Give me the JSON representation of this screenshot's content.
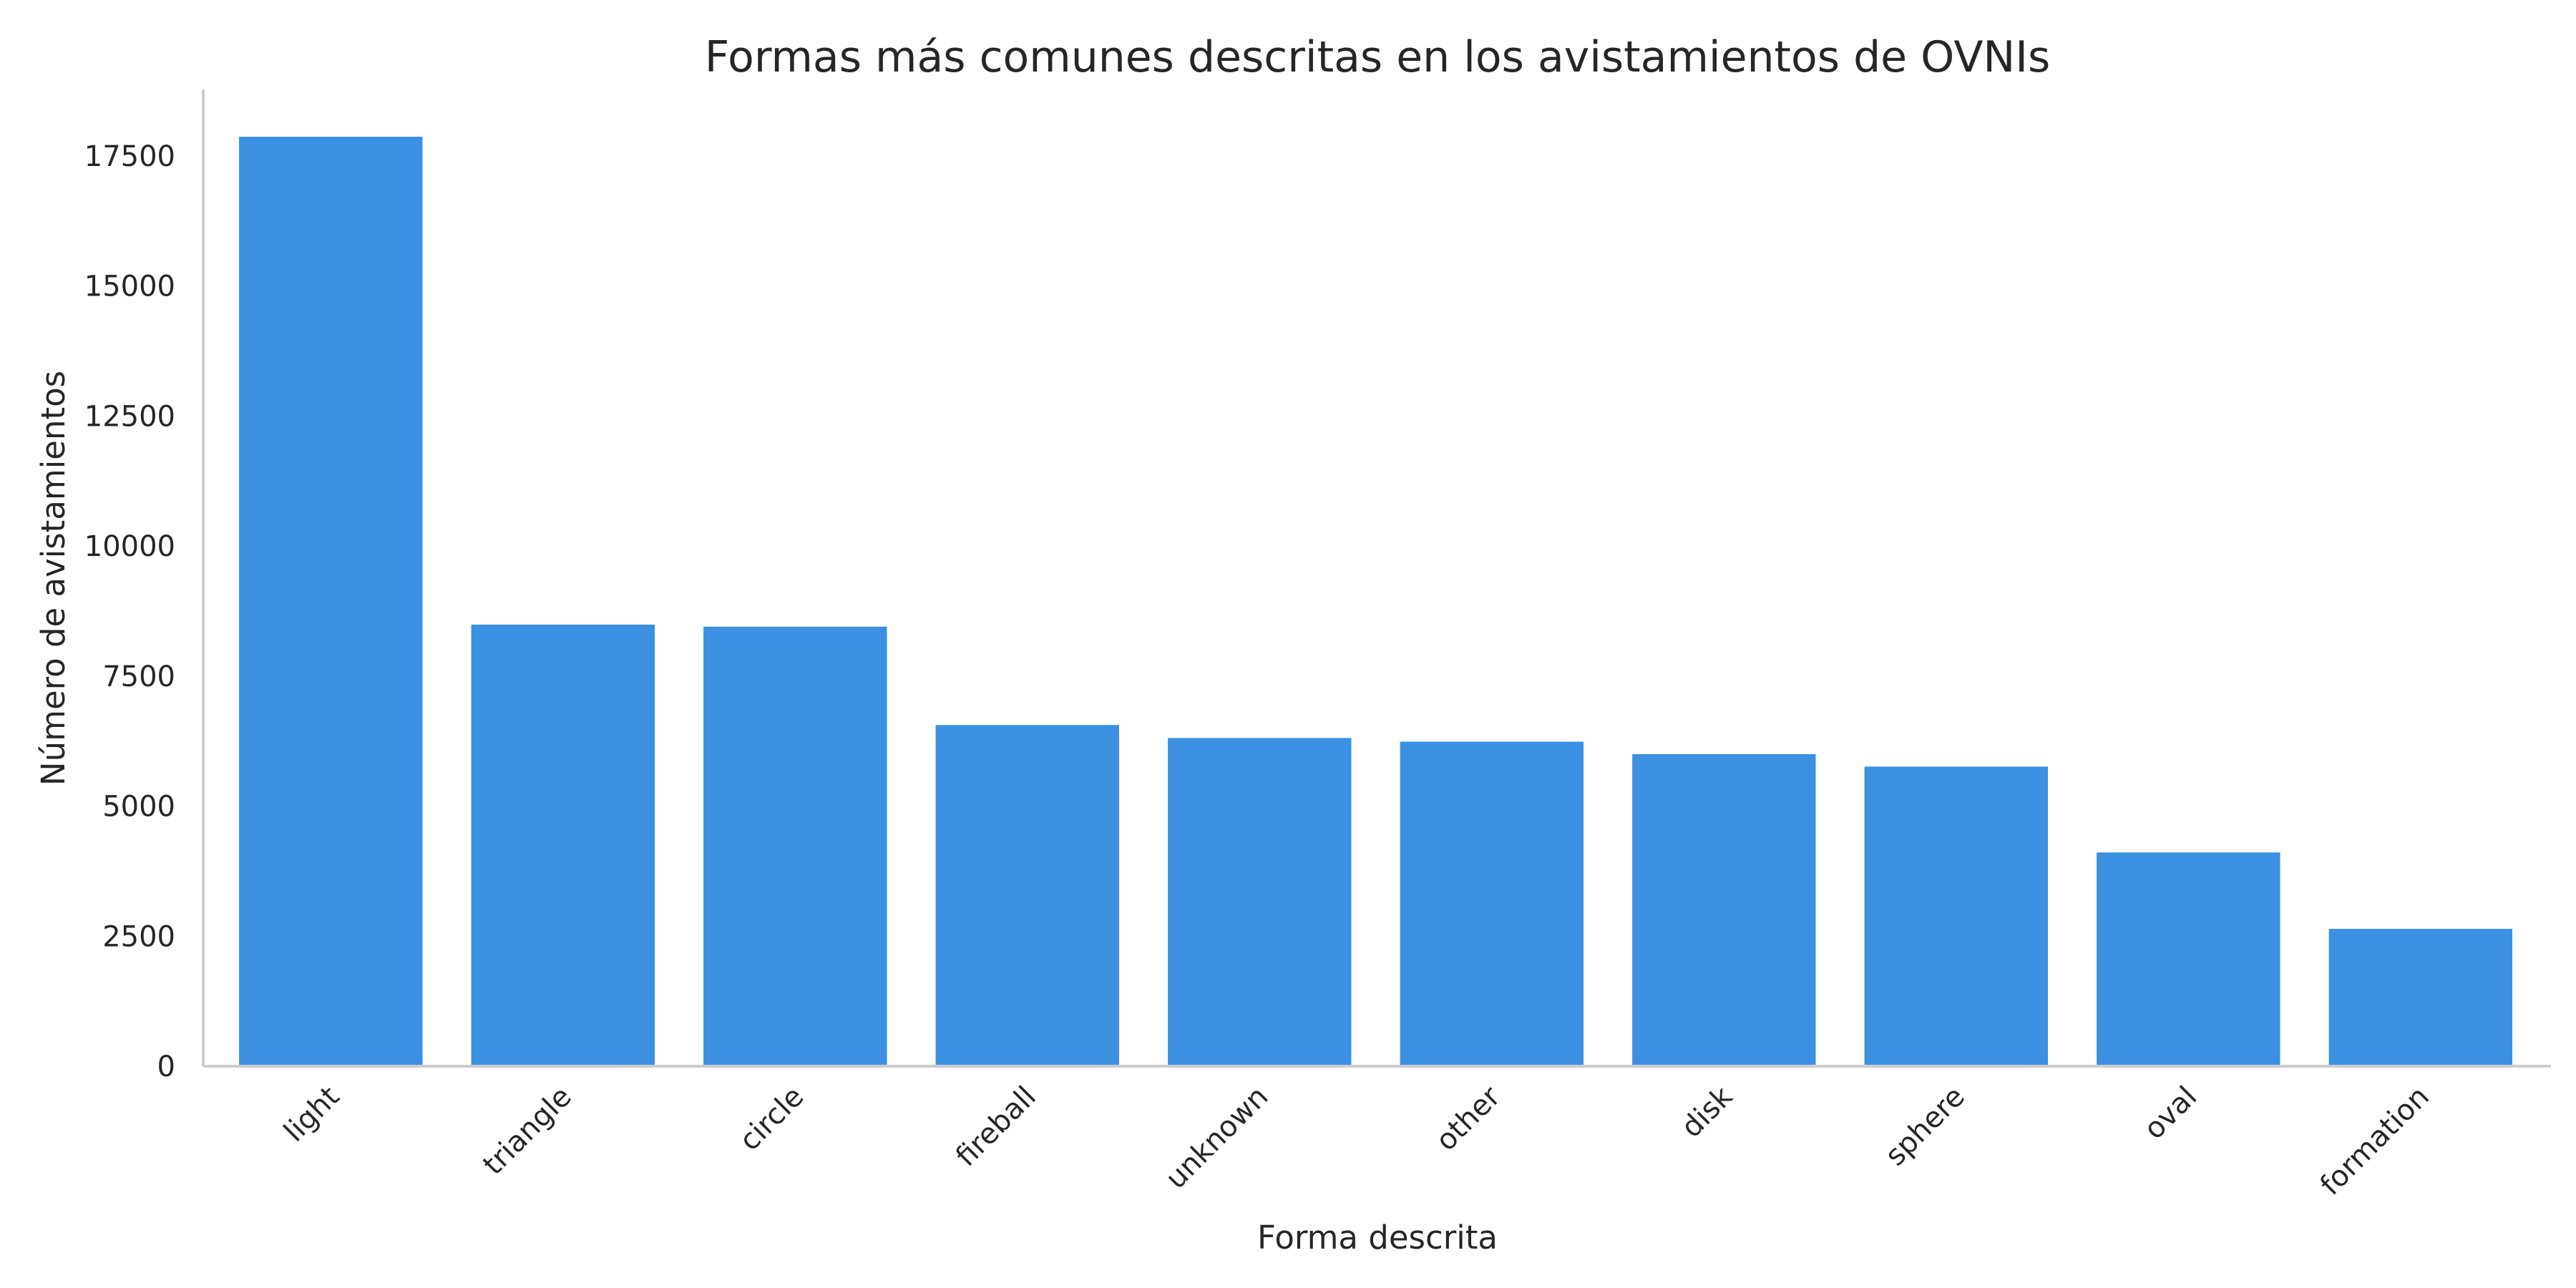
{
  "chart_data": {
    "type": "bar",
    "title": "Formas más comunes descritas en los avistamientos de OVNIs",
    "xlabel": "Forma descrita",
    "ylabel": "Número de avistamientos",
    "categories": [
      "light",
      "triangle",
      "circle",
      "fireball",
      "unknown",
      "other",
      "disk",
      "sphere",
      "oval",
      "formation"
    ],
    "values": [
      17870,
      8490,
      8450,
      6560,
      6310,
      6240,
      6000,
      5760,
      4110,
      2640
    ],
    "yticks": [
      0,
      2500,
      5000,
      7500,
      10000,
      12500,
      15000,
      17500
    ],
    "ylim": [
      0,
      18780
    ],
    "grid": false,
    "bar_color": "#3b90e2"
  }
}
